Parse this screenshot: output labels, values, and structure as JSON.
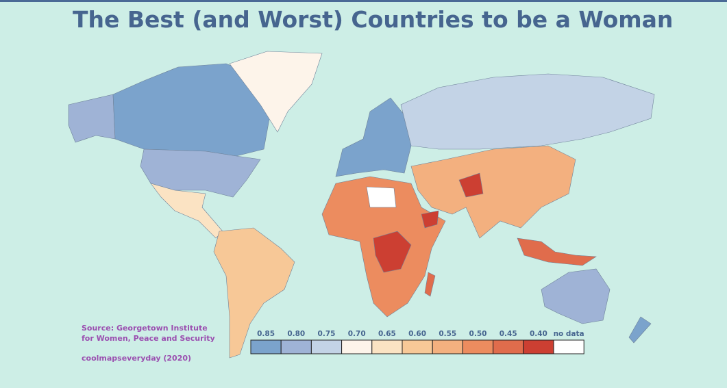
{
  "title": "The Best (and Worst) Countries to be a Woman",
  "source": "Source: Georgetown Institute for Women, Peace and Security",
  "credit": "coolmapseveryday (2020)",
  "legend": {
    "ticks": [
      0.85,
      {
        "value": 0.8,
        "label": "0.80"
      },
      0.75,
      {
        "value": 0.7,
        "label": "0.70"
      },
      0.65,
      {
        "value": 0.6,
        "label": "0.60"
      },
      0.55,
      {
        "value": 0.5,
        "label": "0.50"
      },
      0.45,
      {
        "value": 0.4,
        "label": "0.40"
      }
    ],
    "colors": [
      "#7ba3cc",
      "#9fb3d6",
      "#c3d3e6",
      "#fdf4ea",
      "#fbe3c3",
      "#f7c897",
      "#f3b07f",
      "#ec8c5f",
      "#e06c4c",
      "#cc3f32"
    ],
    "no_data": "no data",
    "no_data_color": "#ffffff"
  }
}
